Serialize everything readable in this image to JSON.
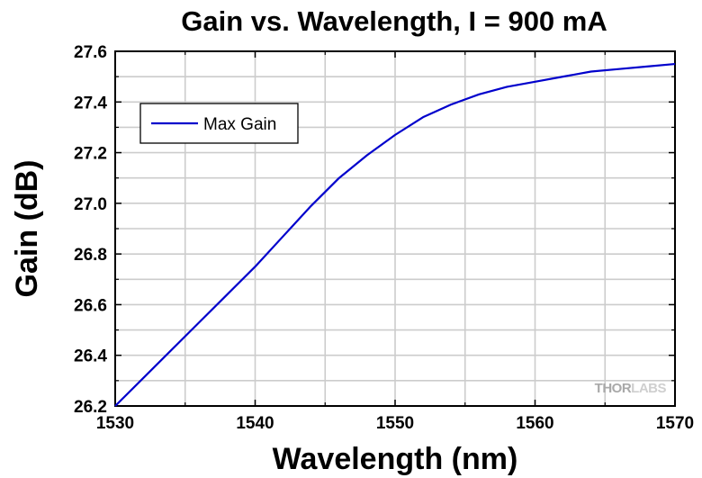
{
  "chart_data": {
    "type": "line",
    "title": "Gain vs. Wavelength, I = 900 mA",
    "xlabel": "Wavelength (nm)",
    "ylabel": "Gain (dB)",
    "xlim": [
      1530,
      1570
    ],
    "ylim": [
      26.2,
      27.6
    ],
    "xticks": [
      1530,
      1540,
      1550,
      1560,
      1570
    ],
    "yticks": [
      "26.2",
      "26.4",
      "26.6",
      "26.8",
      "27.0",
      "27.2",
      "27.4",
      "27.6"
    ],
    "grid": true,
    "legend_position": "top-left",
    "series": [
      {
        "name": "Max Gain",
        "color": "#0000cc",
        "x": [
          1530,
          1532,
          1534,
          1536,
          1538,
          1540,
          1542,
          1544,
          1546,
          1548,
          1550,
          1552,
          1554,
          1556,
          1558,
          1560,
          1562,
          1564,
          1566,
          1568,
          1570
        ],
        "y": [
          26.2,
          26.31,
          26.42,
          26.53,
          26.64,
          26.75,
          26.87,
          26.99,
          27.1,
          27.19,
          27.27,
          27.34,
          27.39,
          27.43,
          27.46,
          27.48,
          27.5,
          27.52,
          27.53,
          27.54,
          27.55
        ]
      }
    ]
  },
  "watermark": {
    "text_dark": "THOR",
    "text_light": "LABS"
  }
}
